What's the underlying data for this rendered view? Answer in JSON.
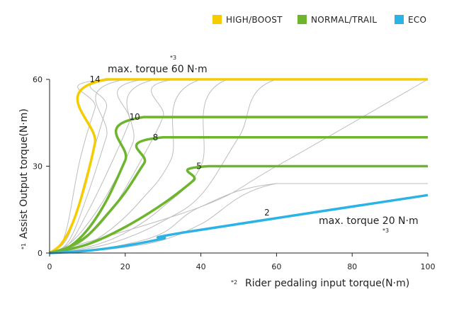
{
  "chart_data": {
    "type": "line",
    "xlabel": "Rider pedaling input torque(N·m)",
    "xlabel_note": "*2",
    "ylabel": "Assist Output torque(N·m)",
    "ylabel_note": "*1",
    "xlim": [
      0,
      100
    ],
    "ylim": [
      0,
      60
    ],
    "x_ticks": [
      0,
      20,
      40,
      60,
      80,
      100
    ],
    "y_ticks": [
      0,
      30,
      60
    ],
    "grid": false,
    "legend_position": "top-right",
    "legend": [
      {
        "name": "HIGH/BOOST",
        "color": "#f5cc00"
      },
      {
        "name": "NORMAL/TRAIL",
        "color": "#6cb52d"
      },
      {
        "name": "ECO",
        "color": "#2bb3e6"
      }
    ],
    "annotations": [
      {
        "text": "max. torque 60 N·m",
        "note": "*3"
      },
      {
        "text": "max. torque 20 N·m",
        "note": "*3"
      }
    ],
    "series": [
      {
        "label": "14",
        "mode": "HIGH/BOOST",
        "color": "#f5cc00",
        "label_at": [
          12.0,
          59
        ],
        "points": [
          [
            0,
            0
          ],
          [
            3,
            3
          ],
          [
            6,
            10
          ],
          [
            9,
            22
          ],
          [
            12,
            38
          ],
          [
            15,
            60
          ],
          [
            100,
            60
          ]
        ]
      },
      {
        "label": "10",
        "mode": "NORMAL/TRAIL",
        "color": "#6cb52d",
        "label_at": [
          22.5,
          46
        ],
        "points": [
          [
            0,
            0
          ],
          [
            5,
            2
          ],
          [
            10,
            8
          ],
          [
            15,
            18
          ],
          [
            20,
            32
          ],
          [
            25,
            47
          ],
          [
            100,
            47
          ]
        ]
      },
      {
        "label": "8",
        "mode": "NORMAL/TRAIL",
        "color": "#6cb52d",
        "label_at": [
          28.0,
          39
        ],
        "points": [
          [
            0,
            0
          ],
          [
            5,
            2
          ],
          [
            10,
            6
          ],
          [
            15,
            13
          ],
          [
            20,
            21
          ],
          [
            25,
            31
          ],
          [
            30,
            40
          ],
          [
            100,
            40
          ]
        ]
      },
      {
        "label": "5",
        "mode": "NORMAL/TRAIL",
        "color": "#6cb52d",
        "label_at": [
          39.5,
          29
        ],
        "points": [
          [
            0,
            0
          ],
          [
            10,
            3
          ],
          [
            20,
            9
          ],
          [
            30,
            17
          ],
          [
            38,
            25
          ],
          [
            42,
            30
          ],
          [
            100,
            30
          ]
        ]
      },
      {
        "label": "2",
        "mode": "ECO",
        "color": "#2bb3e6",
        "label_at": [
          57.5,
          13
        ],
        "points": [
          [
            0,
            0
          ],
          [
            10,
            0.8
          ],
          [
            20,
            2.5
          ],
          [
            30,
            5
          ],
          [
            35,
            7
          ],
          [
            100,
            20
          ]
        ]
      }
    ],
    "reference_curves": [
      [
        [
          0,
          0
        ],
        [
          4,
          6
        ],
        [
          8,
          32
        ],
        [
          12,
          50
        ],
        [
          15,
          60
        ],
        [
          100,
          60
        ]
      ],
      [
        [
          0,
          0
        ],
        [
          5,
          6
        ],
        [
          10,
          28
        ],
        [
          15,
          50
        ],
        [
          18,
          60
        ],
        [
          100,
          60
        ]
      ],
      [
        [
          0,
          0
        ],
        [
          5,
          4
        ],
        [
          10,
          20
        ],
        [
          15,
          40
        ],
        [
          20,
          60
        ],
        [
          100,
          60
        ]
      ],
      [
        [
          0,
          0
        ],
        [
          5,
          3
        ],
        [
          10,
          14
        ],
        [
          16,
          30
        ],
        [
          21,
          45
        ],
        [
          25,
          60
        ],
        [
          100,
          60
        ]
      ],
      [
        [
          0,
          0
        ],
        [
          5,
          3
        ],
        [
          10,
          10
        ],
        [
          16,
          22
        ],
        [
          22,
          38
        ],
        [
          28,
          60
        ],
        [
          100,
          60
        ]
      ],
      [
        [
          0,
          0
        ],
        [
          6,
          2
        ],
        [
          12,
          8
        ],
        [
          18,
          18
        ],
        [
          25,
          34
        ],
        [
          30,
          47
        ],
        [
          33,
          60
        ],
        [
          100,
          60
        ]
      ],
      [
        [
          0,
          0
        ],
        [
          8,
          2
        ],
        [
          16,
          8
        ],
        [
          24,
          18
        ],
        [
          32,
          32
        ],
        [
          40,
          60
        ],
        [
          100,
          60
        ]
      ],
      [
        [
          0,
          0
        ],
        [
          10,
          2
        ],
        [
          20,
          7
        ],
        [
          30,
          16
        ],
        [
          40,
          30
        ],
        [
          47,
          60
        ],
        [
          100,
          60
        ]
      ],
      [
        [
          0,
          0
        ],
        [
          10,
          1.5
        ],
        [
          20,
          5
        ],
        [
          30,
          11
        ],
        [
          40,
          20
        ],
        [
          50,
          40
        ],
        [
          60,
          60
        ],
        [
          100,
          60
        ]
      ],
      [
        [
          0,
          0
        ],
        [
          10,
          1
        ],
        [
          20,
          3
        ],
        [
          30,
          7
        ],
        [
          40,
          16
        ],
        [
          60,
          24
        ],
        [
          100,
          24
        ]
      ],
      [
        [
          0,
          0
        ],
        [
          10,
          0.7
        ],
        [
          20,
          2
        ],
        [
          30,
          4.5
        ],
        [
          40,
          10
        ],
        [
          60,
          24
        ],
        [
          100,
          24
        ]
      ],
      [
        [
          0,
          0
        ],
        [
          40,
          16
        ],
        [
          60,
          30
        ],
        [
          100,
          60
        ]
      ]
    ]
  }
}
